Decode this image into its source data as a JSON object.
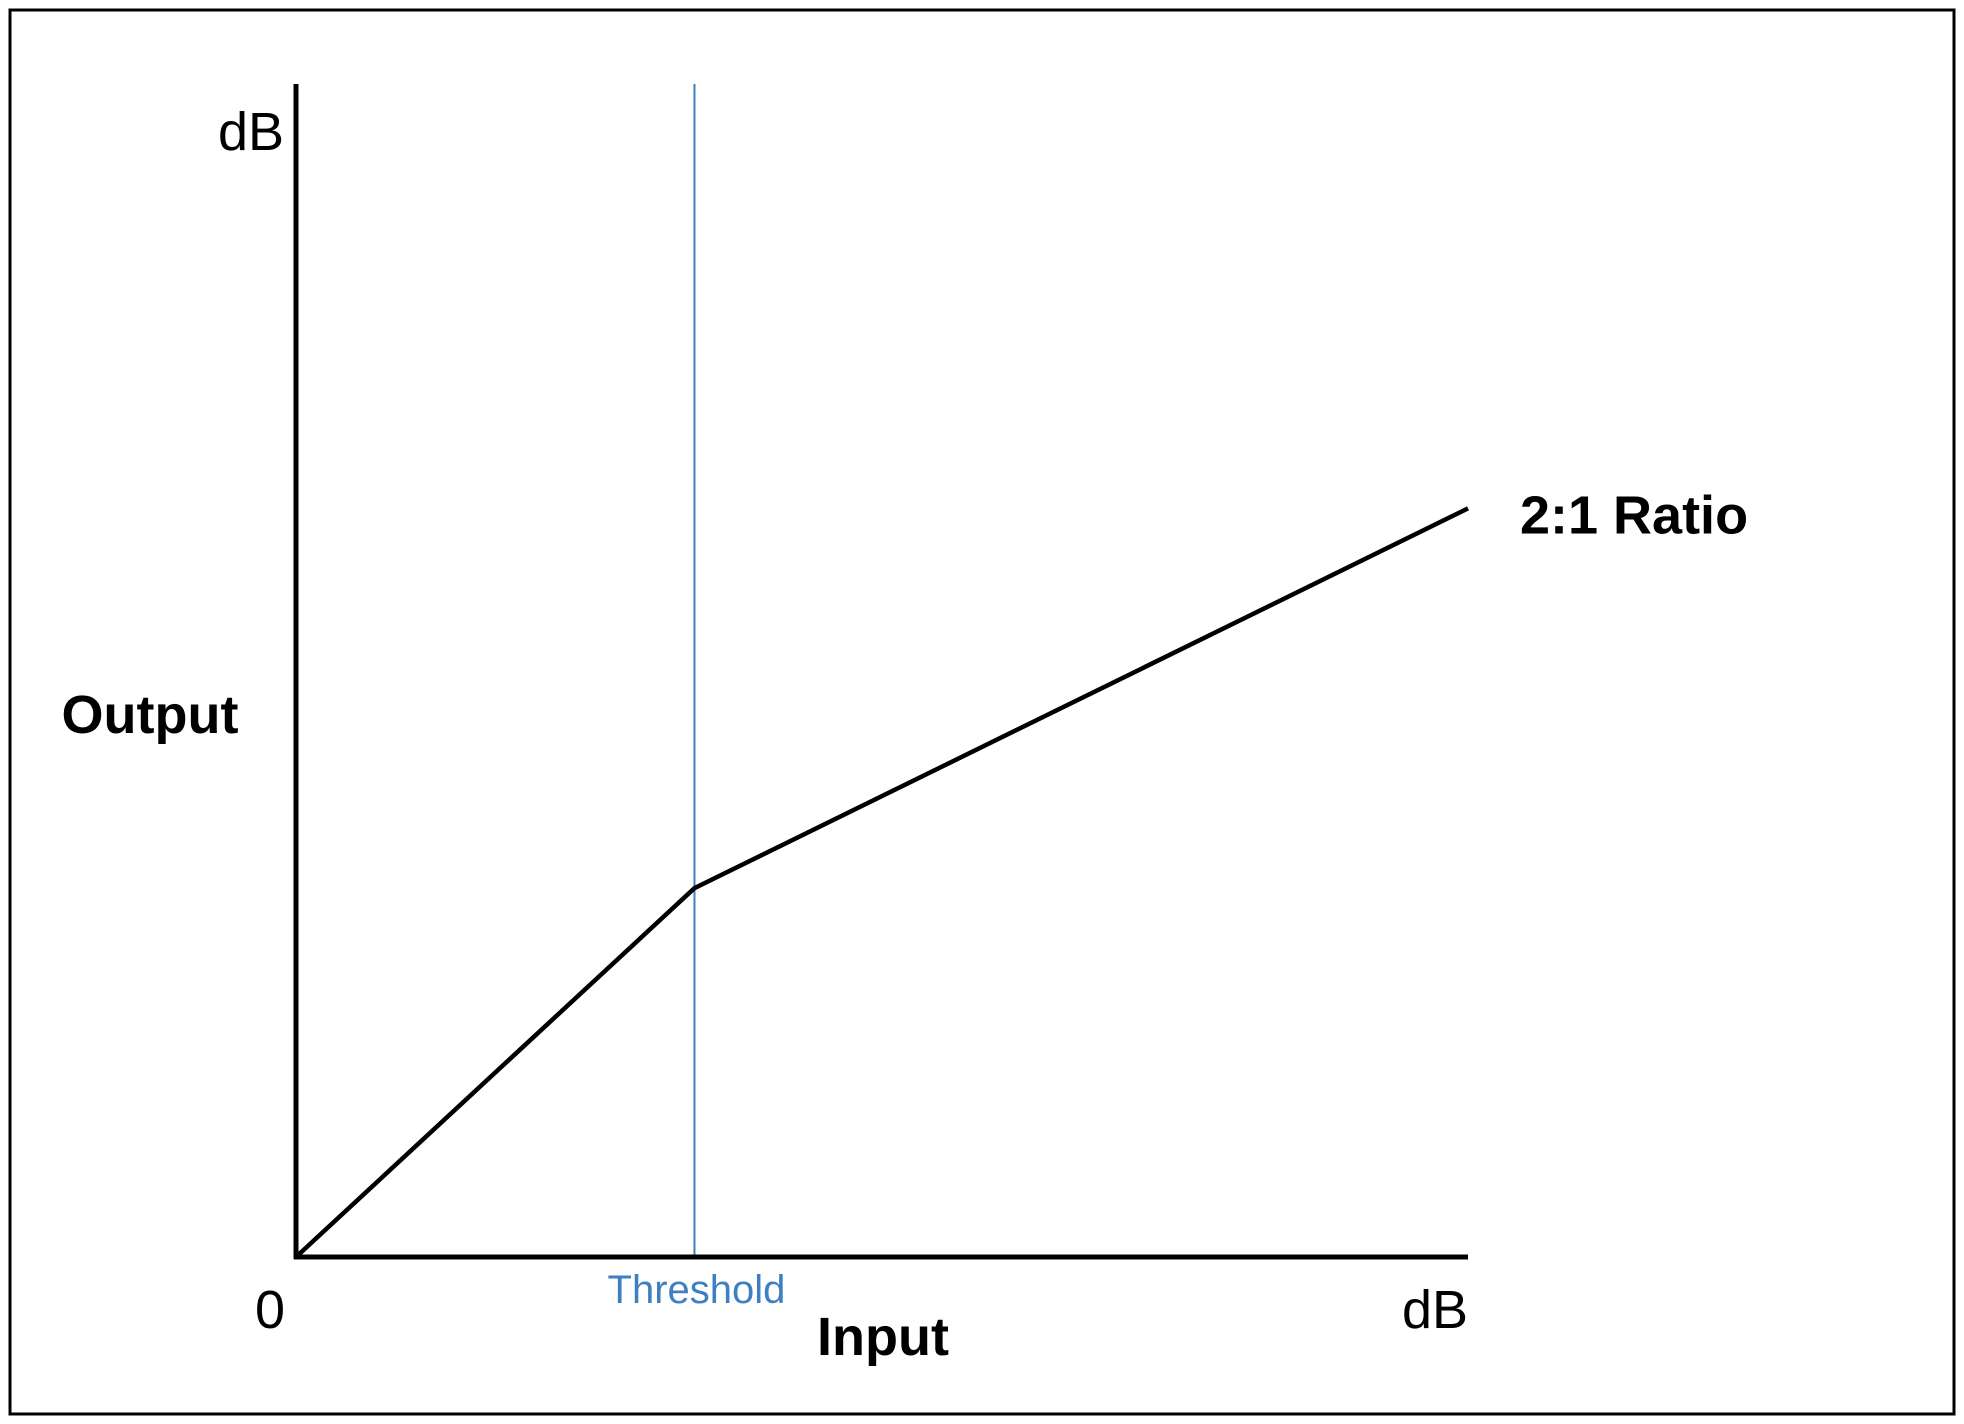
{
  "colors": {
    "threshold": "#3d7fc0",
    "curve": "#000000",
    "axis": "#000000",
    "frame": "#000000",
    "background": "#ffffff"
  },
  "chart_data": {
    "type": "line",
    "xlabel": "Input",
    "ylabel": "Output",
    "x_unit_label": "dB",
    "y_unit_label": "dB",
    "origin_label": "0",
    "x_range": [
      0,
      100
    ],
    "y_range": [
      0,
      100
    ],
    "grid": false,
    "threshold": {
      "label": "Threshold",
      "x": 34
    },
    "series": [
      {
        "name": "2:1 Ratio",
        "x": [
          0,
          34,
          100
        ],
        "y": [
          0,
          34,
          69
        ]
      }
    ]
  }
}
